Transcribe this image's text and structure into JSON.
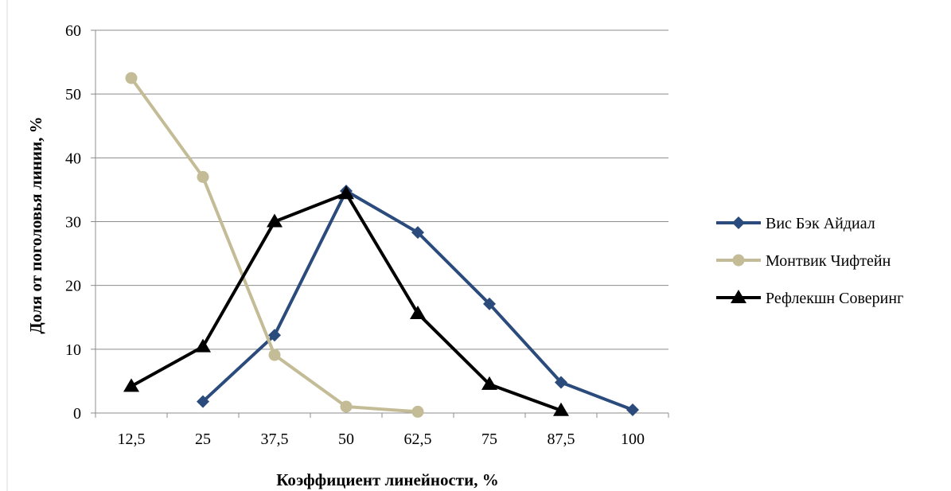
{
  "chart_data": {
    "type": "line",
    "categories": [
      "12,5",
      "25",
      "37,5",
      "50",
      "62,5",
      "75",
      "87,5",
      "100"
    ],
    "xlabel": "Коэффициент линейности, %",
    "ylabel": "Доля от поголовья линии, %",
    "ylim": [
      0,
      60
    ],
    "yticks": [
      "0",
      "10",
      "20",
      "30",
      "40",
      "50",
      "60"
    ],
    "grid": true,
    "legend_position": "right",
    "series": [
      {
        "name": "Вис Бэк Айдиал",
        "values": [
          null,
          1.8,
          12.2,
          34.8,
          28.3,
          17.1,
          4.8,
          0.5
        ],
        "color": "#2a4b7c",
        "marker": "diamond"
      },
      {
        "name": "Монтвик Чифтейн",
        "values": [
          52.5,
          37.0,
          9.1,
          1.0,
          0.2,
          null,
          null,
          null
        ],
        "color": "#c4bc96",
        "marker": "circle"
      },
      {
        "name": "Рефлекшн Соверинг",
        "values": [
          4.2,
          10.4,
          30.0,
          34.4,
          15.6,
          4.5,
          0.4,
          null
        ],
        "color": "#000000",
        "marker": "triangle"
      }
    ]
  }
}
